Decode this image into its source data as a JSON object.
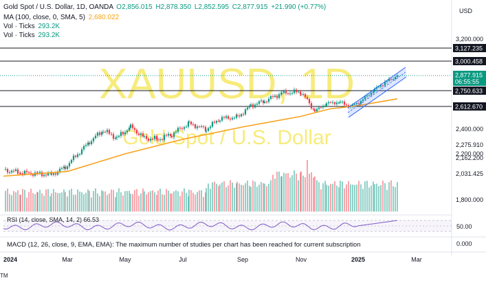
{
  "header": {
    "line1": {
      "symbol": "Gold Spot / U.S. Dollar, 1D, OANDA",
      "open": "O2,856.015",
      "high": "H2,878.350",
      "low": "L2,852.595",
      "close": "C2,877.915",
      "change": "+21.990 (+0.77%)"
    },
    "line2": {
      "label": "MA (100, close, 0, SMA, 5)",
      "value": "2,680.022"
    },
    "line3": {
      "label": "Vol · Ticks",
      "value": "293.2K"
    },
    "line4": {
      "label": "Vol · Ticks",
      "value": "293.2K"
    }
  },
  "currency": "USD",
  "watermark": {
    "symbol": "XAUUSD, 1D",
    "name": "Gold Spot / U.S. Dollar"
  },
  "rsi_label": "RSI (14, close, SMA, 14, 2) 66.53",
  "macd_label": "MACD (12, 26, close, 9, EMA, EMA): The maximum number of studies per chart has been reached for current subscription",
  "bottom_text": "TM",
  "colors": {
    "up": "#089981",
    "down": "#f23645",
    "ma": "#f7a21b",
    "rsi": "#7e57c2",
    "channel": "#2962ff",
    "price_tag": "#089981",
    "hline": "#131722",
    "watermark": "#f5e65a"
  },
  "chart_data": {
    "type": "line",
    "title": "Gold Spot / U.S. Dollar, 1D, OANDA",
    "price_axis": {
      "ticks": [
        "3,200.000",
        "2,400.000",
        "2,275.910",
        "2,200.000",
        "2,162.200",
        "2,031.425",
        "1,800.000"
      ],
      "tick_values": [
        3200,
        2400,
        2275.91,
        2200,
        2162.2,
        2031.425,
        1800
      ],
      "range": [
        1780,
        3260
      ]
    },
    "x_axis": {
      "ticks": [
        "2024",
        "Mar",
        "May",
        "Jul",
        "Sep",
        "Nov",
        "2025",
        "Mar"
      ]
    },
    "horizontal_lines": [
      {
        "label": "3,127.235",
        "value": 3127.235
      },
      {
        "label": "3,000.458",
        "value": 3000.458
      },
      {
        "label": "2,750.633",
        "value": 2750.633
      },
      {
        "label": "2,612.670",
        "value": 2612.67
      }
    ],
    "last_price": {
      "label": "2,877.915",
      "value": 2877.915,
      "countdown": "06:55:55"
    },
    "series": [
      {
        "name": "Gold Spot / U.S. Dollar",
        "points": [
          [
            "2024",
            2063
          ],
          [
            "Jan",
            2040
          ],
          [
            "Feb",
            2030
          ],
          [
            "Feb",
            2025
          ],
          [
            "Mar",
            2085
          ],
          [
            "Mar",
            2180
          ],
          [
            "Apr",
            2300
          ],
          [
            "Apr",
            2390
          ],
          [
            "May",
            2330
          ],
          [
            "May",
            2420
          ],
          [
            "Jun",
            2330
          ],
          [
            "Jun",
            2320
          ],
          [
            "Jul",
            2360
          ],
          [
            "Jul",
            2450
          ],
          [
            "Aug",
            2400
          ],
          [
            "Aug",
            2500
          ],
          [
            "Sep",
            2510
          ],
          [
            "Sep",
            2620
          ],
          [
            "Oct",
            2660
          ],
          [
            "Oct",
            2730
          ],
          [
            "Nov",
            2740
          ],
          [
            "Nov",
            2570
          ],
          [
            "Dec",
            2640
          ],
          [
            "Dec",
            2650
          ],
          [
            "2025",
            2610
          ],
          [
            "Jan",
            2660
          ],
          [
            "Jan",
            2760
          ],
          [
            "Feb",
            2820
          ],
          [
            "Feb",
            2877.915
          ]
        ]
      },
      {
        "name": "MA (100, close, 0, SMA, 5)",
        "points": [
          [
            "2024",
            2010
          ],
          [
            "Mar",
            2050
          ],
          [
            "May",
            2200
          ],
          [
            "Jul",
            2320
          ],
          [
            "Sep",
            2420
          ],
          [
            "Nov",
            2520
          ],
          [
            "Dec",
            2590
          ],
          [
            "2025",
            2620
          ],
          [
            "Feb",
            2680.022
          ]
        ]
      }
    ],
    "rsi": {
      "value": 66.53,
      "tick": "50.00"
    },
    "macd_tick": "0.000",
    "volume": {
      "last": "293.2K"
    }
  }
}
